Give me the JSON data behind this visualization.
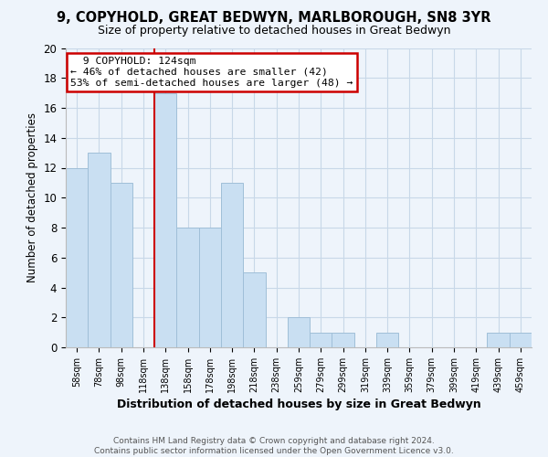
{
  "title": "9, COPYHOLD, GREAT BEDWYN, MARLBOROUGH, SN8 3YR",
  "subtitle": "Size of property relative to detached houses in Great Bedwyn",
  "xlabel": "Distribution of detached houses by size in Great Bedwyn",
  "ylabel": "Number of detached properties",
  "bar_labels": [
    "58sqm",
    "78sqm",
    "98sqm",
    "118sqm",
    "138sqm",
    "158sqm",
    "178sqm",
    "198sqm",
    "218sqm",
    "238sqm",
    "259sqm",
    "279sqm",
    "299sqm",
    "319sqm",
    "339sqm",
    "359sqm",
    "379sqm",
    "399sqm",
    "419sqm",
    "439sqm",
    "459sqm"
  ],
  "bar_values": [
    12,
    13,
    11,
    0,
    17,
    8,
    8,
    11,
    5,
    0,
    2,
    1,
    1,
    0,
    1,
    0,
    0,
    0,
    0,
    1,
    1
  ],
  "bar_color": "#c9dff2",
  "bar_edge_color": "#a0bfd8",
  "vline_color": "#cc0000",
  "ylim": [
    0,
    20
  ],
  "yticks": [
    0,
    2,
    4,
    6,
    8,
    10,
    12,
    14,
    16,
    18,
    20
  ],
  "annotation_title": "9 COPYHOLD: 124sqm",
  "annotation_line1": "← 46% of detached houses are smaller (42)",
  "annotation_line2": "53% of semi-detached houses are larger (48) →",
  "annotation_box_color": "#ffffff",
  "annotation_box_edge": "#cc0000",
  "footer_line1": "Contains HM Land Registry data © Crown copyright and database right 2024.",
  "footer_line2": "Contains public sector information licensed under the Open Government Licence v3.0.",
  "grid_color": "#c8d8e8",
  "bg_color": "#eef4fb"
}
